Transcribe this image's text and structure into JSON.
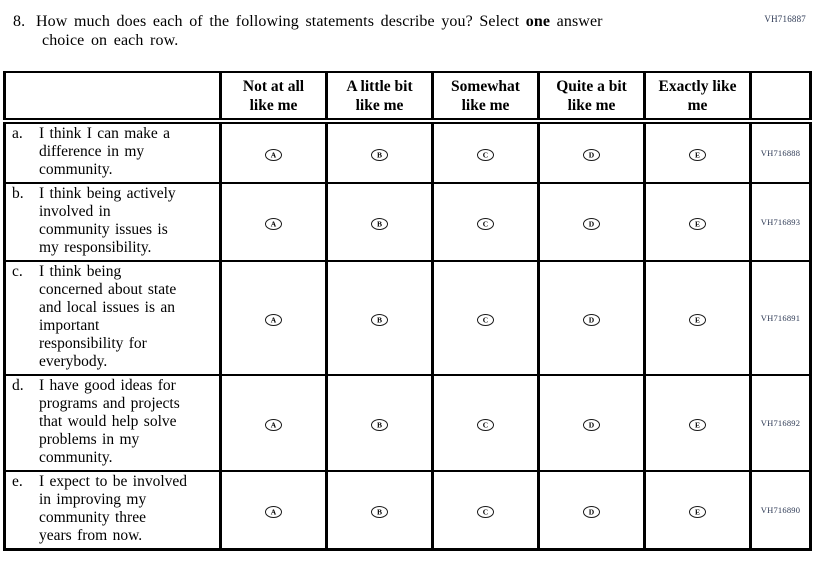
{
  "page": {
    "top_right_code": "VH716887"
  },
  "question": {
    "number": "8.",
    "text_before_bold": "How much does each of the following statements describe you? Select",
    "bold_word": "one",
    "text_after_bold": "answer",
    "text_line2": "choice on each row."
  },
  "table": {
    "headers": [
      "Not at all\nlike me",
      "A little bit\nlike me",
      "Somewhat\nlike me",
      "Quite a bit\nlike me",
      "Exactly like\nme"
    ],
    "rows": [
      {
        "letter": "a.",
        "statement": "I think I can make a\ndifference in my\ncommunity.",
        "options": [
          "A",
          "B",
          "C",
          "D",
          "E"
        ],
        "code": "VH716888"
      },
      {
        "letter": "b.",
        "statement": "I think being actively\ninvolved in\ncommunity issues is\nmy responsibility.",
        "options": [
          "A",
          "B",
          "C",
          "D",
          "E"
        ],
        "code": "VH716893"
      },
      {
        "letter": "c.",
        "statement": "I think being\nconcerned about state\nand local issues is an\nimportant\nresponsibility for\neverybody.",
        "options": [
          "A",
          "B",
          "C",
          "D",
          "E"
        ],
        "code": "VH716891"
      },
      {
        "letter": "d.",
        "statement": "I have good ideas for\nprograms and projects\nthat would help solve\nproblems in my\ncommunity.",
        "options": [
          "A",
          "B",
          "C",
          "D",
          "E"
        ],
        "code": "VH716892"
      },
      {
        "letter": "e.",
        "statement": "I expect to be involved\nin improving my\ncommunity three\nyears from now.",
        "options": [
          "A",
          "B",
          "C",
          "D",
          "E"
        ],
        "code": "VH716890"
      }
    ]
  },
  "colors": {
    "ink": "#000000",
    "code_text": "#2e3a55",
    "background": "#ffffff"
  }
}
